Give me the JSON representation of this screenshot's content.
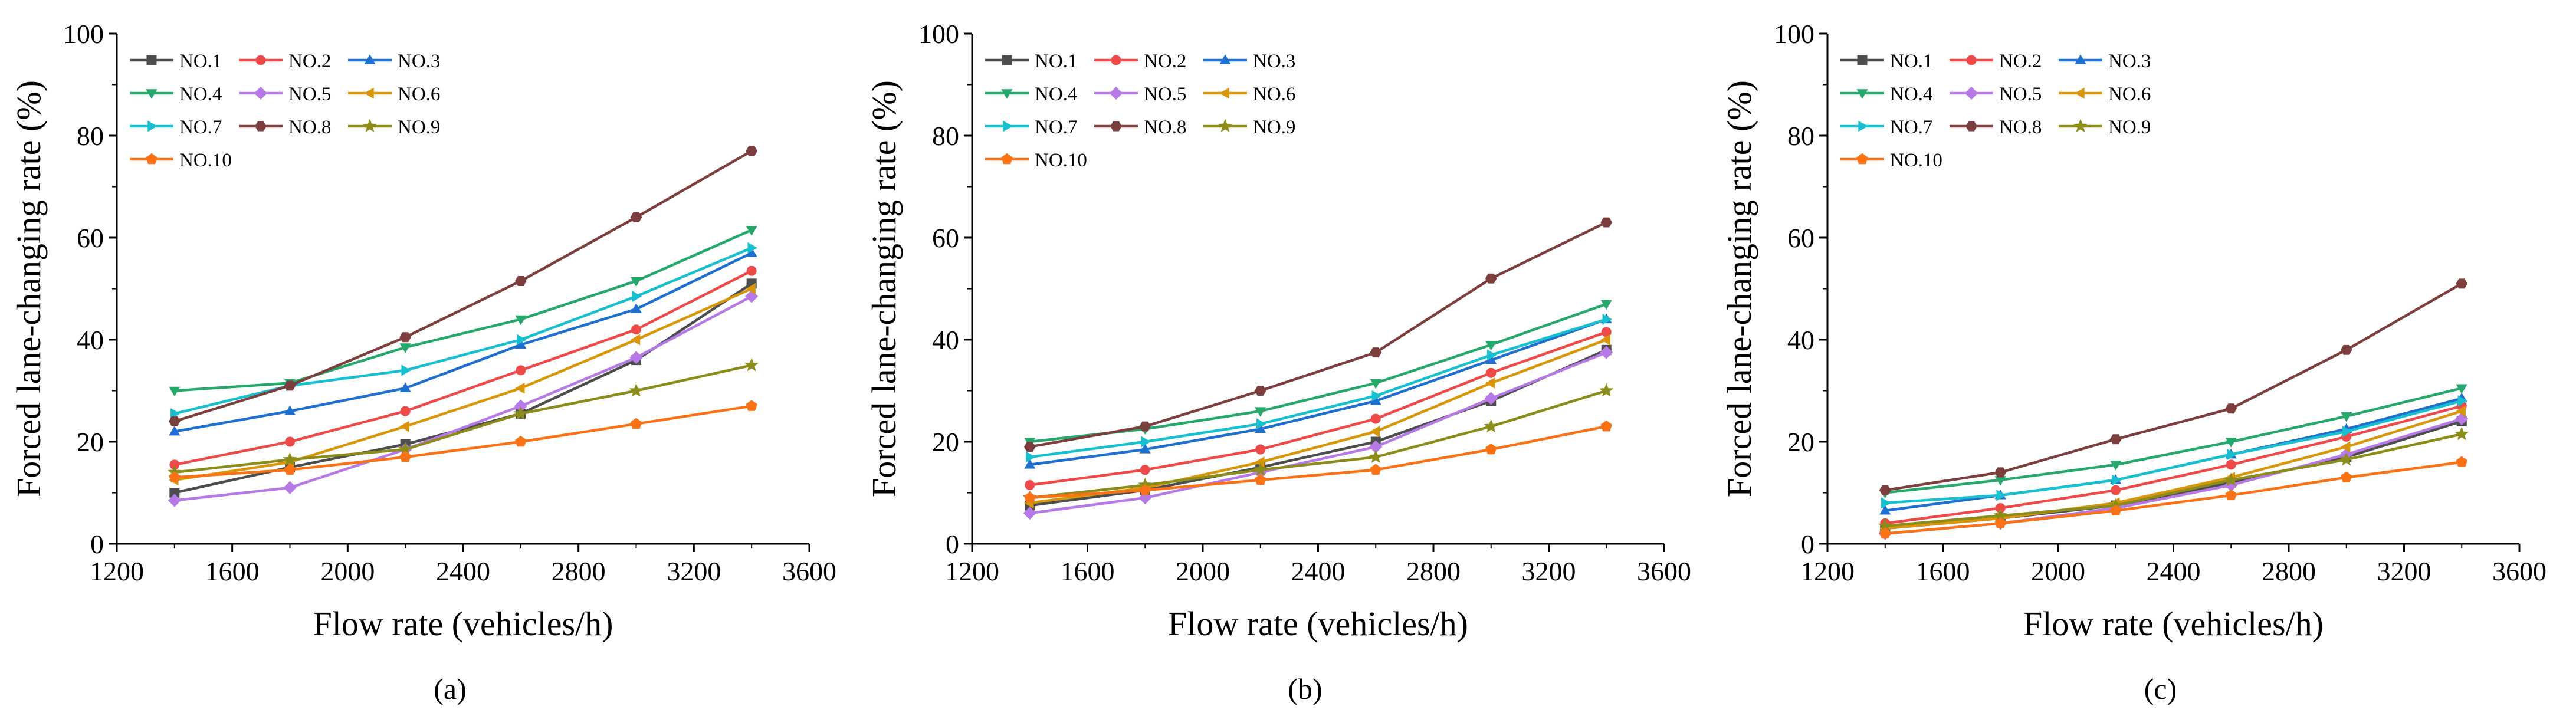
{
  "series_names": [
    "NO.1",
    "NO.2",
    "NO.3",
    "NO.4",
    "NO.5",
    "NO.6",
    "NO.7",
    "NO.8",
    "NO.9",
    "NO.10"
  ],
  "series_colors": [
    "#4d4d4d",
    "#ef4a4a",
    "#1f6fd1",
    "#27a86b",
    "#b779e6",
    "#d9960b",
    "#18c0cf",
    "#7d3e3e",
    "#8c8c1a",
    "#f97316"
  ],
  "series_markers": [
    "square",
    "circle",
    "triangle-up",
    "triangle-down",
    "diamond",
    "triangle-left",
    "triangle-right",
    "hexagon",
    "star",
    "pentagon"
  ],
  "chart_data": [
    {
      "type": "line",
      "caption": "(a)",
      "xlabel": "Flow rate (vehicles/h)",
      "ylabel": "Forced lane-changing rate (%)",
      "xlim": [
        1200,
        3600
      ],
      "ylim": [
        0,
        100
      ],
      "xticks": [
        1200,
        1600,
        2000,
        2400,
        2800,
        3200,
        3600
      ],
      "yticks": [
        0,
        20,
        40,
        60,
        80,
        100
      ],
      "x": [
        1400,
        1800,
        2200,
        2600,
        3000,
        3400
      ],
      "legend_position": "top-left",
      "series": [
        {
          "name": "NO.1",
          "values": [
            10,
            15,
            19.5,
            25.5,
            36,
            51
          ]
        },
        {
          "name": "NO.2",
          "values": [
            15.5,
            20,
            26,
            34,
            42,
            53.5
          ]
        },
        {
          "name": "NO.3",
          "values": [
            22,
            26,
            30.5,
            39,
            46,
            57
          ]
        },
        {
          "name": "NO.4",
          "values": [
            30,
            31.5,
            38.5,
            44,
            51.5,
            61.5
          ]
        },
        {
          "name": "NO.5",
          "values": [
            8.5,
            11,
            18.5,
            27,
            36.5,
            48.5
          ]
        },
        {
          "name": "NO.6",
          "values": [
            12.5,
            16,
            23,
            30.5,
            40,
            50
          ]
        },
        {
          "name": "NO.7",
          "values": [
            25.5,
            31,
            34,
            40,
            48.5,
            58
          ]
        },
        {
          "name": "NO.8",
          "values": [
            24,
            31,
            40.5,
            51.5,
            64,
            77
          ]
        },
        {
          "name": "NO.9",
          "values": [
            14,
            16.5,
            18.5,
            25.5,
            30,
            35
          ]
        },
        {
          "name": "NO.10",
          "values": [
            13,
            14.5,
            17,
            20,
            23.5,
            27
          ]
        }
      ]
    },
    {
      "type": "line",
      "caption": "(b)",
      "xlabel": "Flow rate (vehicles/h)",
      "ylabel": "Forced lane-changing rate (%)",
      "xlim": [
        1200,
        3600
      ],
      "ylim": [
        0,
        100
      ],
      "xticks": [
        1200,
        1600,
        2000,
        2400,
        2800,
        3200,
        3600
      ],
      "yticks": [
        0,
        20,
        40,
        60,
        80,
        100
      ],
      "x": [
        1400,
        1800,
        2200,
        2600,
        3000,
        3400
      ],
      "legend_position": "top-left",
      "series": [
        {
          "name": "NO.1",
          "values": [
            7.5,
            10.5,
            15,
            20,
            28,
            38
          ]
        },
        {
          "name": "NO.2",
          "values": [
            11.5,
            14.5,
            18.5,
            24.5,
            33.5,
            41.5
          ]
        },
        {
          "name": "NO.3",
          "values": [
            15.5,
            18.5,
            22.5,
            28,
            36,
            44
          ]
        },
        {
          "name": "NO.4",
          "values": [
            20,
            22.5,
            26,
            31.5,
            39,
            47
          ]
        },
        {
          "name": "NO.5",
          "values": [
            6,
            9,
            14,
            19,
            28.5,
            37.5
          ]
        },
        {
          "name": "NO.6",
          "values": [
            8,
            11,
            16,
            22,
            31.5,
            40
          ]
        },
        {
          "name": "NO.7",
          "values": [
            17,
            20,
            23.5,
            29,
            37,
            44
          ]
        },
        {
          "name": "NO.8",
          "values": [
            19,
            23,
            30,
            37.5,
            52,
            63
          ]
        },
        {
          "name": "NO.9",
          "values": [
            9,
            11.5,
            14.5,
            17,
            23,
            30
          ]
        },
        {
          "name": "NO.10",
          "values": [
            9,
            10.5,
            12.5,
            14.5,
            18.5,
            23
          ]
        }
      ]
    },
    {
      "type": "line",
      "caption": "(c)",
      "xlabel": "Flow rate (vehicles/h)",
      "ylabel": "Forced lane-changing rate (%)",
      "xlim": [
        1200,
        3600
      ],
      "ylim": [
        0,
        100
      ],
      "xticks": [
        1200,
        1600,
        2000,
        2400,
        2800,
        3200,
        3600
      ],
      "yticks": [
        0,
        20,
        40,
        60,
        80,
        100
      ],
      "x": [
        1400,
        1800,
        2200,
        2600,
        3000,
        3400
      ],
      "legend_position": "top-left",
      "series": [
        {
          "name": "NO.1",
          "values": [
            3,
            5,
            7.5,
            12,
            17,
            24
          ]
        },
        {
          "name": "NO.2",
          "values": [
            4,
            7,
            10.5,
            15.5,
            21,
            27
          ]
        },
        {
          "name": "NO.3",
          "values": [
            6.5,
            9.5,
            12.5,
            17.5,
            22.5,
            28.5
          ]
        },
        {
          "name": "NO.4",
          "values": [
            10,
            12.5,
            15.5,
            20,
            25,
            30.5
          ]
        },
        {
          "name": "NO.5",
          "values": [
            2,
            4,
            7,
            11.5,
            17.5,
            24.5
          ]
        },
        {
          "name": "NO.6",
          "values": [
            3,
            5,
            8,
            13,
            19,
            26
          ]
        },
        {
          "name": "NO.7",
          "values": [
            8,
            9.5,
            12.5,
            17.5,
            22,
            28
          ]
        },
        {
          "name": "NO.8",
          "values": [
            10.5,
            14,
            20.5,
            26.5,
            38,
            51
          ]
        },
        {
          "name": "NO.9",
          "values": [
            3.5,
            5.5,
            7.5,
            12.5,
            16.5,
            21.5
          ]
        },
        {
          "name": "NO.10",
          "values": [
            2,
            4,
            6.5,
            9.5,
            13,
            16
          ]
        }
      ]
    }
  ]
}
